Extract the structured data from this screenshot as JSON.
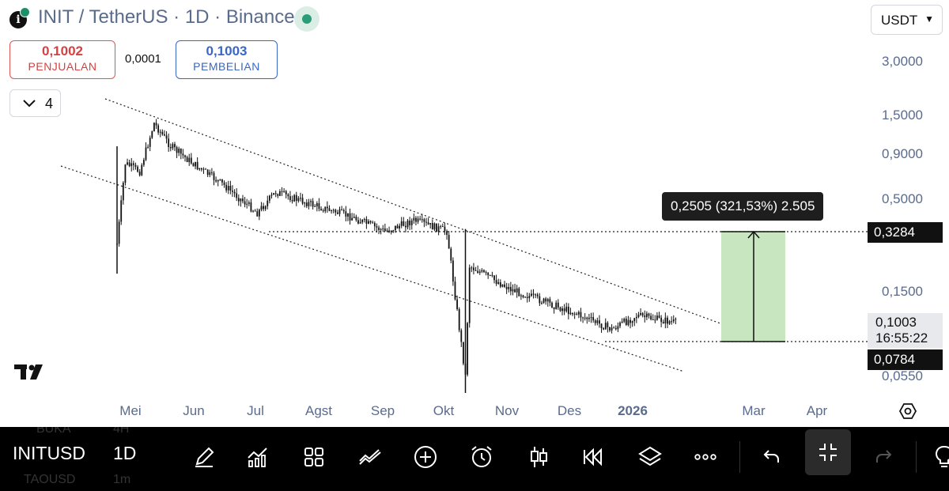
{
  "header": {
    "title": "INIT / TetherUS · 1D · Binance",
    "currency_select": "USDT"
  },
  "quote": {
    "sell_price": "0,1002",
    "sell_label": "PENJUALAN",
    "spread": "0,0001",
    "buy_price": "0,1003",
    "buy_label": "PEMBELIAN"
  },
  "indicators": {
    "count": "4"
  },
  "price_axis": {
    "labels": [
      "3,0000",
      "1,5000",
      "0,9000",
      "0,5000",
      "0,1500"
    ],
    "partial_label": "0,0550"
  },
  "time_axis": {
    "labels": [
      "Mei",
      "Jun",
      "Jul",
      "Agst",
      "Sep",
      "Okt",
      "Nov",
      "Des",
      "2026",
      "Mar",
      "Apr"
    ]
  },
  "tags": {
    "target_price": "0,3284",
    "current_price": "0,1003",
    "countdown": "16:55:22",
    "base_price": "0,0784"
  },
  "measure_tool": {
    "text": "0,2505 (321,53%) 2.505",
    "fill_color": "#c8e6c0"
  },
  "chart_data": {
    "type": "candlestick",
    "y_scale": "log",
    "y_ticks": [
      3.0,
      1.5,
      0.9,
      0.5,
      0.15
    ],
    "x_ticks": [
      "Mei",
      "Jun",
      "Jul",
      "Agst",
      "Sep",
      "Okt",
      "Nov",
      "Des",
      "2026",
      "Mar",
      "Apr"
    ],
    "close_path": [
      {
        "t": "Apr 24",
        "close": 0.28
      },
      {
        "t": "Apr 28",
        "close": 0.8
      },
      {
        "t": "May 5",
        "close": 0.72
      },
      {
        "t": "May 12",
        "close": 1.35
      },
      {
        "t": "May 20",
        "close": 1.0
      },
      {
        "t": "Jun 1",
        "close": 0.78
      },
      {
        "t": "Jun 15",
        "close": 0.6
      },
      {
        "t": "Jul 1",
        "close": 0.42
      },
      {
        "t": "Jul 10",
        "close": 0.55
      },
      {
        "t": "Aug 1",
        "close": 0.45
      },
      {
        "t": "Aug 15",
        "close": 0.4
      },
      {
        "t": "Sep 1",
        "close": 0.33
      },
      {
        "t": "Sep 15",
        "close": 0.38
      },
      {
        "t": "Oct 1",
        "close": 0.33
      },
      {
        "t": "Oct 10",
        "close": 0.05
      },
      {
        "t": "Oct 12",
        "close": 0.21
      },
      {
        "t": "Nov 1",
        "close": 0.155
      },
      {
        "t": "Dec 1",
        "close": 0.115
      },
      {
        "t": "Dec 20",
        "close": 0.092
      },
      {
        "t": "Jan 1",
        "close": 0.11
      },
      {
        "t": "Jan 20",
        "close": 0.1003
      }
    ],
    "levels": [
      0.3284,
      0.0784
    ],
    "channel": "descending parallel channel (dotted)",
    "measure": {
      "from": 0.0784,
      "to": 0.3284,
      "change": 0.2505,
      "percent": 321.53
    }
  },
  "toolbar": {
    "symbol": "INITUSD",
    "interval": "1D",
    "ghost_top": "BUKA",
    "ghost_top_interval": "4H",
    "ghost_bottom": "TAOUSD",
    "ghost_bottom_interval": "1m",
    "buttons": [
      "drawing-pen-icon",
      "indicators-icon",
      "layout-grid-icon",
      "compare-icon",
      "add-icon",
      "alert-icon",
      "chart-type-icon",
      "replay-icon",
      "layers-icon",
      "more-icon",
      "undo-icon",
      "fullscreen-exit-icon",
      "redo-icon",
      "bulb-icon"
    ]
  }
}
